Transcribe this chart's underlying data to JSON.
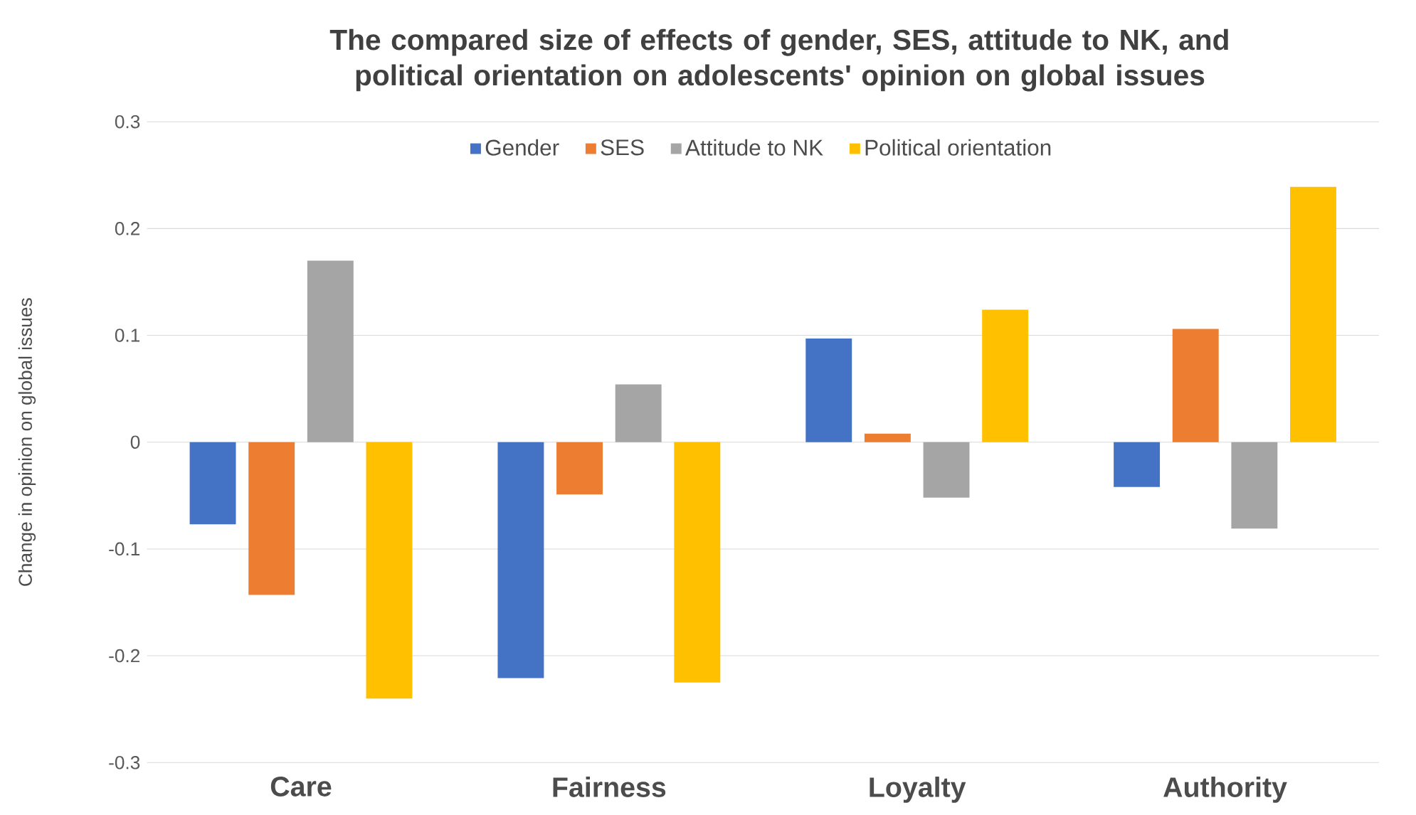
{
  "chart_data": {
    "type": "bar",
    "title": "The compared size of effects of gender, SES, attitude to NK, and political orientation on adolescents' opinion on global issues",
    "ylabel": "Change  in opinion  on global issues",
    "categories": [
      "Care",
      "Fairness",
      "Loyalty",
      "Authority"
    ],
    "series": [
      {
        "name": "Gender",
        "color": "#4472c4",
        "values": [
          -0.077,
          -0.221,
          0.097,
          -0.042
        ]
      },
      {
        "name": "SES",
        "color": "#ed7d31",
        "values": [
          -0.143,
          -0.049,
          0.008,
          0.106
        ]
      },
      {
        "name": "Attitude to NK",
        "color": "#a5a5a5",
        "values": [
          0.17,
          0.054,
          -0.052,
          -0.081
        ]
      },
      {
        "name": "Political orientation",
        "color": "#ffc000",
        "values": [
          -0.24,
          -0.225,
          0.124,
          0.239
        ]
      }
    ],
    "ylim": [
      -0.3,
      0.3
    ],
    "yticks": [
      -0.3,
      -0.2,
      -0.1,
      0,
      0.1,
      0.2,
      0.3
    ],
    "grid": "y",
    "legend": "top"
  }
}
